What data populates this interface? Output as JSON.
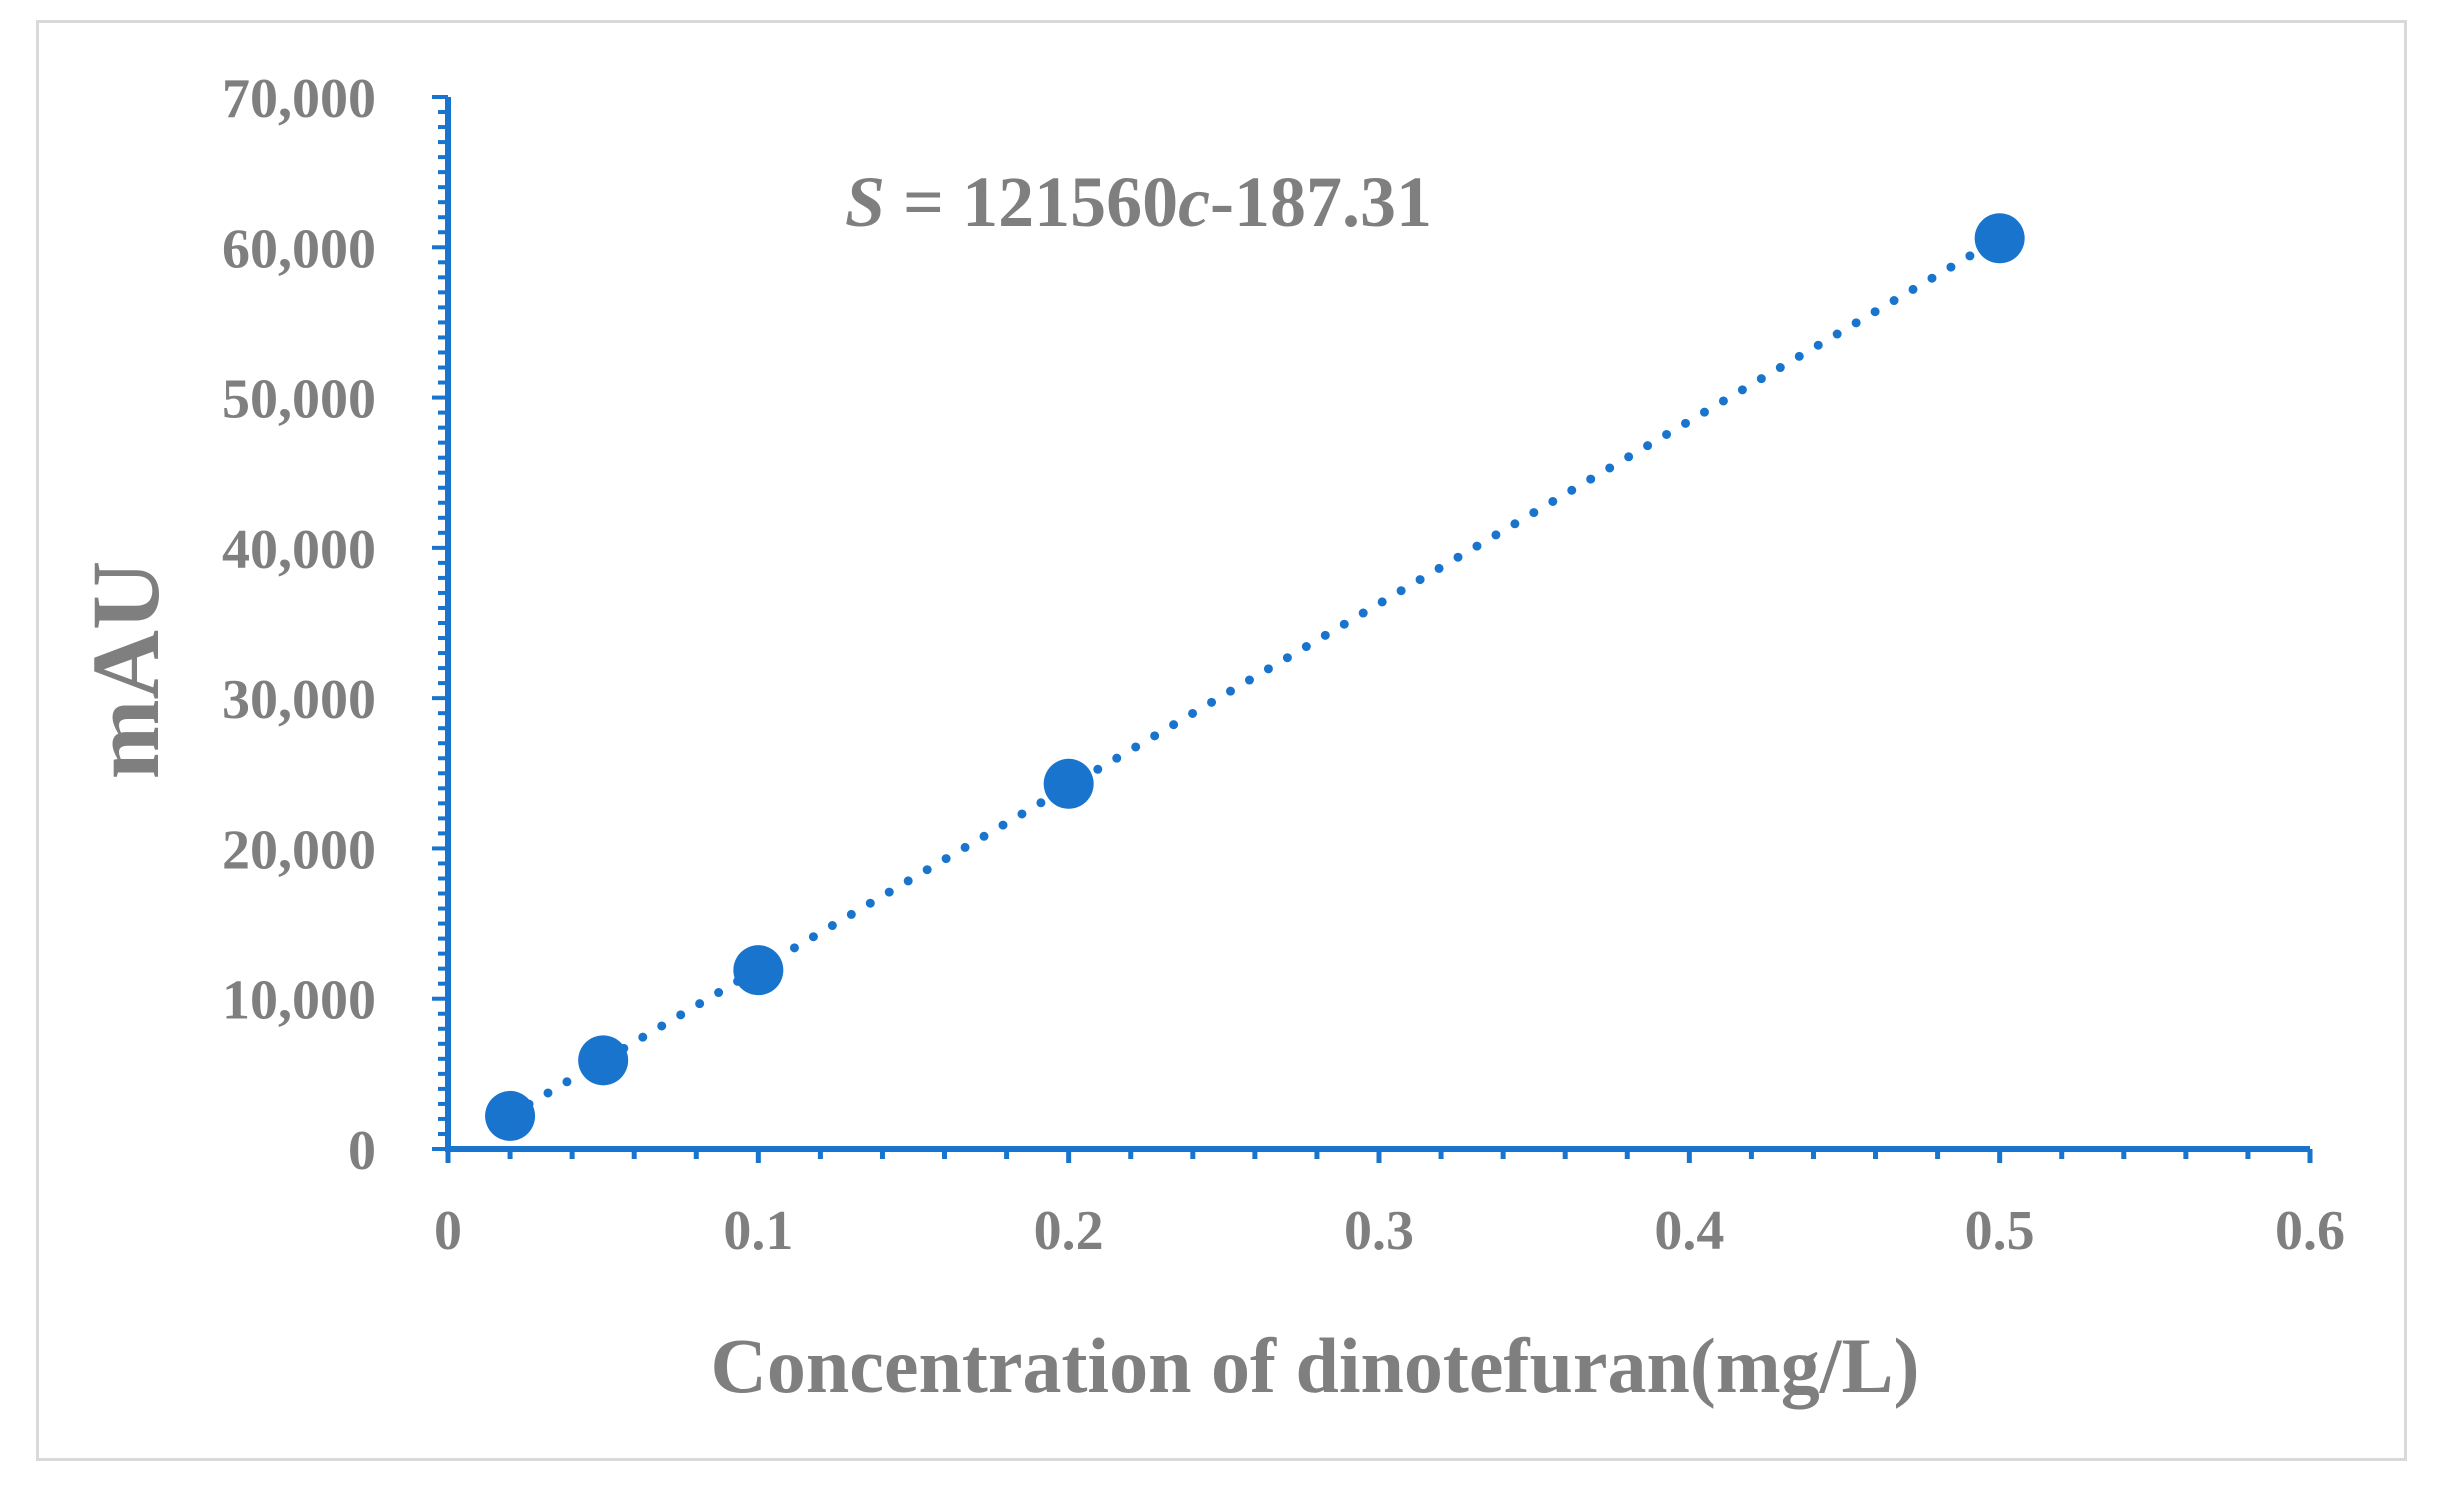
{
  "chart_data": {
    "type": "scatter",
    "title": "",
    "xlabel": "Concentration of dinotefuran(mg/L)",
    "ylabel": "mAU",
    "xlim": [
      0,
      0.6
    ],
    "ylim": [
      0,
      70000
    ],
    "x_ticks": [
      "0",
      "0.1",
      "0.2",
      "0.3",
      "0.4",
      "0.5",
      "0.6"
    ],
    "y_ticks": [
      "0",
      "10,000",
      "20,000",
      "30,000",
      "40,000",
      "50,000",
      "60,000",
      "70,000"
    ],
    "series": [
      {
        "x": [
          0.02,
          0.05,
          0.1,
          0.2,
          0.5
        ],
        "y": [
          2200,
          5900,
          11900,
          24300,
          60600
        ]
      }
    ],
    "trendline": {
      "style": "dotted",
      "slope": 121560,
      "intercept": -187.31,
      "x_range": [
        0.02,
        0.5
      ]
    },
    "equation": {
      "italic_lhs": "S",
      "middle": " = 121560",
      "italic_var": "c",
      "rhs": "-187.31"
    },
    "grid": false,
    "legend": "none",
    "colors": {
      "marker": "#1874cd",
      "axis": "#1874cd",
      "text": "#7f7f7f",
      "frame": "#d9d9d9"
    }
  }
}
